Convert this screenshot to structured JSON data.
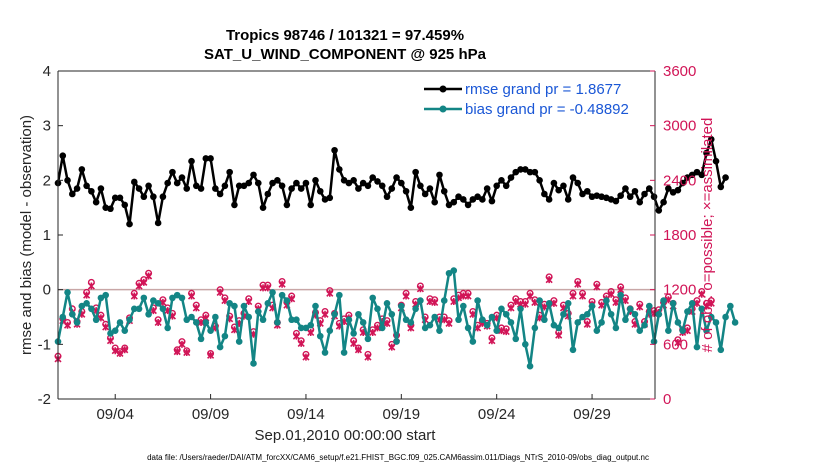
{
  "chart_data": {
    "type": "line",
    "title": "Tropics 98746 / 101321 = 97.459%",
    "subtitle": "SAT_U_WIND_COMPONENT @ 925 hPa",
    "xlabel": "Sep.01,2010 00:00:00 start",
    "ylabel": "rmse and bias (model - observation)",
    "y2label": "# of obs: o=possible; ×=assimilated",
    "footer": "data file: /Users/raeder/DAI/ATM_forcXX/CAM6_setup/f.e21.FHIST_BGC.f09_025.CAM6assim.011/Diags_NTrS_2010-09/obs_diag_output.nc",
    "xlim": [
      1,
      32.3
    ],
    "ylim": [
      -2,
      4
    ],
    "y2lim": [
      0,
      3600
    ],
    "x_ticks": [
      4,
      9,
      14,
      19,
      24,
      29
    ],
    "x_tick_labels": [
      "09/04",
      "09/09",
      "09/14",
      "09/19",
      "09/24",
      "09/29"
    ],
    "y_ticks": [
      -2,
      -1,
      0,
      1,
      2,
      3,
      4
    ],
    "y_tick_labels": [
      "-2",
      "-1",
      "0",
      "1",
      "2",
      "3",
      "4"
    ],
    "y2_ticks": [
      0,
      600,
      1200,
      1800,
      2400,
      3000,
      3600
    ],
    "y2_tick_labels": [
      "0",
      "600",
      "1200",
      "1800",
      "2400",
      "3000",
      "3600"
    ],
    "legend": [
      "rmse grand pr = 1.8677",
      "bias grand pr = -0.48892"
    ],
    "legend_position": "top-right",
    "colors": {
      "rmse": "#000000",
      "bias": "#138585",
      "obs": "#d11557",
      "zero": "#c8a6a6",
      "axis": "#262626"
    },
    "x_start": 1.0,
    "x_step": 0.25,
    "series": [
      {
        "name": "rmse",
        "values": [
          1.95,
          2.45,
          2.0,
          1.75,
          1.85,
          2.2,
          1.9,
          1.8,
          1.6,
          1.85,
          1.5,
          1.48,
          1.68,
          1.68,
          1.55,
          1.2,
          1.97,
          1.85,
          1.7,
          1.9,
          1.7,
          1.22,
          1.7,
          1.95,
          2.15,
          1.95,
          2.05,
          1.85,
          2.35,
          1.9,
          1.85,
          2.4,
          2.4,
          1.85,
          1.75,
          1.9,
          2.15,
          1.55,
          1.9,
          1.9,
          1.95,
          2.1,
          1.95,
          1.5,
          1.75,
          1.95,
          2.0,
          1.9,
          1.55,
          1.85,
          1.95,
          1.85,
          1.95,
          1.55,
          2.0,
          1.8,
          1.65,
          1.68,
          2.55,
          2.2,
          2.0,
          1.95,
          2.0,
          1.85,
          1.95,
          1.9,
          2.05,
          1.98,
          1.9,
          1.7,
          1.85,
          2.05,
          1.95,
          1.8,
          1.5,
          2.15,
          1.9,
          1.75,
          1.85,
          1.6,
          2.1,
          1.8,
          1.55,
          1.6,
          1.7,
          1.65,
          1.55,
          1.65,
          1.7,
          1.65,
          1.85,
          1.62,
          1.9,
          2.0,
          1.9,
          2.05,
          2.15,
          2.2,
          2.2,
          2.15,
          2.15,
          2.0,
          1.75,
          1.65,
          1.95,
          1.82,
          1.9,
          1.65,
          2.05,
          1.95,
          1.75,
          1.8,
          1.7,
          1.72,
          1.7,
          1.68,
          1.65,
          1.62,
          1.72,
          1.85,
          1.7,
          1.8,
          1.6,
          1.75,
          1.85,
          1.7,
          1.45,
          1.6,
          1.85,
          1.78,
          1.82,
          1.95,
          2.05,
          2.1,
          2.15,
          2.1,
          2.5,
          2.75,
          2.35,
          1.88,
          2.05
        ]
      },
      {
        "name": "bias",
        "values": [
          -0.95,
          -0.5,
          -0.05,
          -0.45,
          -0.6,
          -0.3,
          -0.25,
          -0.35,
          -0.55,
          -0.15,
          -0.1,
          -0.8,
          -0.75,
          -0.6,
          -0.75,
          -0.55,
          -0.35,
          -0.35,
          -0.15,
          -0.45,
          -0.2,
          -0.25,
          -0.35,
          -0.7,
          -0.15,
          -0.1,
          -0.15,
          -0.55,
          -0.5,
          -0.6,
          -0.9,
          -0.6,
          -0.75,
          -0.5,
          -1.05,
          -0.85,
          -0.25,
          -0.3,
          -0.95,
          -0.3,
          -0.5,
          -1.35,
          -0.4,
          -0.55,
          -0.25,
          -0.05,
          -0.6,
          -0.1,
          -0.2,
          -0.55,
          -0.55,
          -0.7,
          -0.7,
          -0.65,
          -0.3,
          -0.85,
          -1.15,
          -0.75,
          -0.45,
          -0.1,
          -1.15,
          -0.55,
          -0.8,
          -0.45,
          -0.6,
          -0.9,
          -0.15,
          -0.35,
          -0.7,
          -0.25,
          -0.45,
          -0.95,
          -0.3,
          -0.55,
          -0.6,
          -0.35,
          -0.2,
          -0.7,
          -0.65,
          -0.5,
          -0.75,
          -0.2,
          0.3,
          0.35,
          -0.55,
          -0.3,
          -0.7,
          -0.95,
          -0.2,
          -0.55,
          -0.65,
          -0.5,
          -0.75,
          -0.35,
          -0.45,
          -0.6,
          -0.9,
          -0.35,
          -1.0,
          -1.4,
          -0.7,
          -0.2,
          -0.55,
          -0.25,
          -0.65,
          -0.7,
          -0.45,
          -0.25,
          -1.1,
          -0.6,
          -0.5,
          -0.45,
          -0.3,
          -0.75,
          -0.6,
          -0.2,
          -0.45,
          -0.7,
          -0.1,
          -0.55,
          -0.35,
          -0.45,
          -0.75,
          -0.65,
          -0.3,
          -0.95,
          -0.45,
          -0.2,
          -0.75,
          -0.25,
          -0.6,
          -0.75,
          -0.4,
          -0.25,
          -1.05,
          -0.35,
          -0.75,
          -0.5,
          -0.6,
          -1.1,
          -0.5,
          -0.3,
          -0.6
        ]
      },
      {
        "name": "obs_possible",
        "values": [
          470,
          880,
          840,
          990,
          850,
          960,
          1170,
          1280,
          1000,
          920,
          820,
          670,
          560,
          520,
          560,
          890,
          1160,
          1270,
          1310,
          1380,
          1000,
          870,
          1090,
          1000,
          940,
          540,
          630,
          530,
          1160,
          1030,
          870,
          920,
          500,
          800,
          1200,
          1110,
          910,
          790,
          860,
          940,
          1100,
          740,
          1020,
          1250,
          1250,
          1030,
          840,
          1290,
          1060,
          1130,
          720,
          640,
          490,
          760,
          950,
          860,
          960,
          1190,
          940,
          830,
          880,
          920,
          640,
          560,
          760,
          490,
          760,
          810,
          880,
          860,
          600,
          700,
          1030,
          1160,
          810,
          1070,
          1240,
          900,
          1100,
          1090,
          900,
          900,
          860,
          1100,
          1140,
          1160,
          1160,
          960,
          810,
          860,
          830,
          670,
          920,
          780,
          770,
          1030,
          1100,
          1070,
          1070,
          1160,
          1090,
          920,
          1040,
          1340,
          1080,
          730,
          1030,
          940,
          1160,
          1290,
          1160,
          850,
          1070,
          1260,
          1060,
          1130,
          1180,
          1090,
          1230,
          1110,
          990,
          850,
          1040,
          850,
          960,
          970,
          980,
          1060,
          1120,
          1050,
          650,
          760,
          780,
          990,
          1080,
          1180,
          1050,
          1080
        ]
      },
      {
        "name": "obs_assimilated",
        "values": [
          440,
          860,
          810,
          950,
          820,
          930,
          1140,
          1240,
          970,
          890,
          790,
          640,
          530,
          500,
          540,
          860,
          1130,
          1240,
          1280,
          1350,
          970,
          840,
          1060,
          970,
          910,
          520,
          600,
          510,
          1130,
          1000,
          840,
          890,
          480,
          780,
          1170,
          1080,
          880,
          760,
          830,
          910,
          1070,
          710,
          990,
          1220,
          1220,
          1000,
          810,
          1260,
          1030,
          1100,
          690,
          610,
          460,
          730,
          920,
          830,
          930,
          1160,
          910,
          800,
          850,
          890,
          610,
          540,
          730,
          460,
          730,
          780,
          850,
          830,
          570,
          670,
          1000,
          1130,
          780,
          1040,
          1210,
          870,
          1070,
          1060,
          870,
          870,
          830,
          1070,
          1110,
          1130,
          1130,
          930,
          780,
          830,
          800,
          640,
          890,
          750,
          740,
          1000,
          1070,
          1040,
          1040,
          1130,
          1060,
          890,
          1010,
          1310,
          1050,
          700,
          1000,
          910,
          1130,
          1260,
          1130,
          820,
          1040,
          1230,
          1030,
          1100,
          1150,
          1060,
          1200,
          1080,
          960,
          820,
          1010,
          820,
          930,
          940,
          950,
          1030,
          1090,
          1020,
          620,
          730,
          750,
          960,
          1050,
          1150,
          1020,
          1050
        ]
      }
    ]
  }
}
